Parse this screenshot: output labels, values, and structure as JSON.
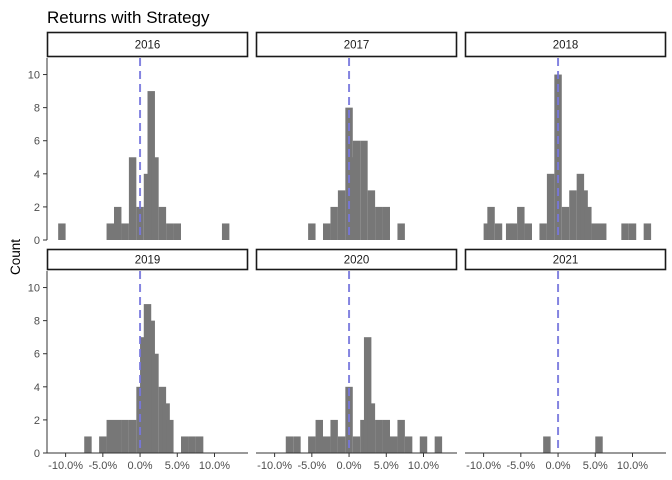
{
  "chart_data": {
    "type": "histogram",
    "title": "Returns with Strategy",
    "xlabel": "",
    "ylabel": "Count",
    "xlim": [
      -12.5,
      14.5
    ],
    "ylim": [
      0,
      11
    ],
    "bin_width": 1.0,
    "x_ticks": [
      "-10.0%",
      "-5.0%",
      "0.0%",
      "5.0%",
      "10.0%"
    ],
    "x_tick_values": [
      -10,
      -5,
      0,
      5,
      10
    ],
    "y_ticks": [
      0,
      2,
      4,
      6,
      8,
      10
    ],
    "reference_line": {
      "x": 0,
      "style": "dashed",
      "color": "#7777dd"
    },
    "bar_color": "#777777",
    "grid": false,
    "facets": [
      {
        "label": "2016",
        "bins": [
          {
            "x": -10.5,
            "count": 1
          },
          {
            "x": -4,
            "count": 1
          },
          {
            "x": -3,
            "count": 2
          },
          {
            "x": -2,
            "count": 1
          },
          {
            "x": -1,
            "count": 5
          },
          {
            "x": 0,
            "count": 2
          },
          {
            "x": 1,
            "count": 4
          },
          {
            "x": 1.5,
            "count": 9
          },
          {
            "x": 2,
            "count": 5
          },
          {
            "x": 3,
            "count": 2
          },
          {
            "x": 4,
            "count": 1
          },
          {
            "x": 5,
            "count": 1
          },
          {
            "x": 11.5,
            "count": 1
          }
        ]
      },
      {
        "label": "2017",
        "bins": [
          {
            "x": -5,
            "count": 1
          },
          {
            "x": -3,
            "count": 1
          },
          {
            "x": -2,
            "count": 2
          },
          {
            "x": -1,
            "count": 3
          },
          {
            "x": 0,
            "count": 8
          },
          {
            "x": 0.5,
            "count": 5
          },
          {
            "x": 1,
            "count": 6
          },
          {
            "x": 2,
            "count": 6
          },
          {
            "x": 3,
            "count": 3
          },
          {
            "x": 4,
            "count": 2
          },
          {
            "x": 5,
            "count": 2
          },
          {
            "x": 7,
            "count": 1
          }
        ]
      },
      {
        "label": "2018",
        "bins": [
          {
            "x": -9.5,
            "count": 1
          },
          {
            "x": -9,
            "count": 2
          },
          {
            "x": -8,
            "count": 1
          },
          {
            "x": -6.5,
            "count": 1
          },
          {
            "x": -6,
            "count": 1
          },
          {
            "x": -5,
            "count": 2
          },
          {
            "x": -4,
            "count": 1
          },
          {
            "x": -2,
            "count": 1
          },
          {
            "x": -1,
            "count": 4
          },
          {
            "x": 0,
            "count": 10
          },
          {
            "x": 1,
            "count": 2
          },
          {
            "x": 2,
            "count": 3
          },
          {
            "x": 3,
            "count": 4
          },
          {
            "x": 3.5,
            "count": 3
          },
          {
            "x": 4,
            "count": 2
          },
          {
            "x": 5,
            "count": 1
          },
          {
            "x": 6,
            "count": 1
          },
          {
            "x": 9,
            "count": 1
          },
          {
            "x": 10,
            "count": 1
          },
          {
            "x": 12,
            "count": 1
          }
        ]
      },
      {
        "label": "2019",
        "bins": [
          {
            "x": -7,
            "count": 1
          },
          {
            "x": -5,
            "count": 1
          },
          {
            "x": -4,
            "count": 2
          },
          {
            "x": -3,
            "count": 2
          },
          {
            "x": -2,
            "count": 2
          },
          {
            "x": -1,
            "count": 2
          },
          {
            "x": 0,
            "count": 4
          },
          {
            "x": 0.5,
            "count": 7
          },
          {
            "x": 1,
            "count": 9
          },
          {
            "x": 1.5,
            "count": 8
          },
          {
            "x": 2,
            "count": 6
          },
          {
            "x": 3,
            "count": 4
          },
          {
            "x": 3.5,
            "count": 3
          },
          {
            "x": 4,
            "count": 2
          },
          {
            "x": 6,
            "count": 1
          },
          {
            "x": 7,
            "count": 1
          },
          {
            "x": 8,
            "count": 1
          }
        ]
      },
      {
        "label": "2020",
        "bins": [
          {
            "x": -8,
            "count": 1
          },
          {
            "x": -7,
            "count": 1
          },
          {
            "x": -5,
            "count": 1
          },
          {
            "x": -4,
            "count": 2
          },
          {
            "x": -3,
            "count": 1
          },
          {
            "x": -2,
            "count": 2
          },
          {
            "x": -1,
            "count": 1
          },
          {
            "x": 0,
            "count": 4
          },
          {
            "x": 1,
            "count": 1
          },
          {
            "x": 2,
            "count": 2
          },
          {
            "x": 2.5,
            "count": 7
          },
          {
            "x": 3,
            "count": 3
          },
          {
            "x": 4,
            "count": 2
          },
          {
            "x": 5,
            "count": 2
          },
          {
            "x": 6,
            "count": 1
          },
          {
            "x": 7,
            "count": 2
          },
          {
            "x": 8,
            "count": 1
          },
          {
            "x": 10,
            "count": 1
          },
          {
            "x": 12,
            "count": 1
          }
        ]
      },
      {
        "label": "2021",
        "bins": [
          {
            "x": -1.5,
            "count": 1
          },
          {
            "x": 5.5,
            "count": 1
          }
        ]
      }
    ]
  }
}
